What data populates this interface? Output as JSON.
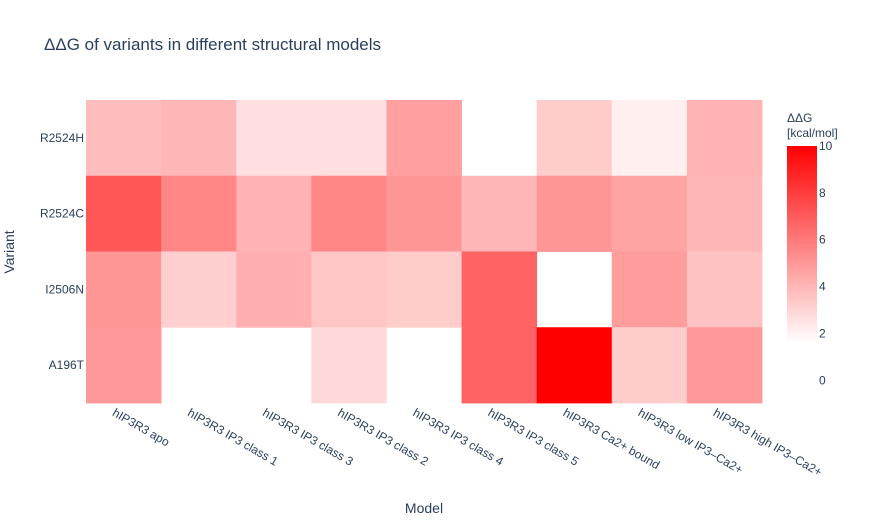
{
  "chart_data": {
    "type": "heatmap",
    "title": "ΔΔG of variants in different structural models",
    "xlabel": "Model",
    "ylabel": "Variant",
    "x": [
      "hIP3R3 apo",
      "hIP3R3 IP3 class 1",
      "hIP3R3 IP3 class 3",
      "hIP3R3 IP3 class 2",
      "hIP3R3 IP3 class 4",
      "hIP3R3 IP3 class 5",
      "hIP3R3 Ca2+ bound",
      "hIP3R3 low IP3–Ca2+",
      "hIP3R3 high IP3–Ca2+"
    ],
    "y": [
      "R2524H",
      "R2524C",
      "I2506N",
      "A196T"
    ],
    "z": [
      [
        4.1,
        4.3,
        3.0,
        3.0,
        5.0,
        null,
        3.6,
        2.5,
        4.4
      ],
      [
        7.3,
        5.8,
        4.4,
        5.8,
        5.3,
        4.3,
        5.3,
        4.9,
        4.3
      ],
      [
        5.3,
        3.5,
        4.5,
        3.8,
        3.6,
        6.9,
        null,
        5.1,
        3.9
      ],
      [
        5.2,
        null,
        null,
        3.2,
        null,
        6.9,
        10.0,
        3.6,
        5.2
      ]
    ],
    "colorscale": [
      "#ffffff",
      "#ff0000"
    ],
    "zmin": 2,
    "zmax": 10,
    "colorbar": {
      "title": "ΔΔG [kcal/mol]",
      "title_lines": [
        "ΔΔG",
        "[kcal/mol]"
      ],
      "tickvals": [
        0,
        2,
        4,
        6,
        8,
        10
      ],
      "ticktext": [
        "0",
        "2",
        "4",
        "6",
        "8",
        "10"
      ],
      "range": [
        -0.5,
        10
      ]
    },
    "legend": "none",
    "grid": false
  }
}
